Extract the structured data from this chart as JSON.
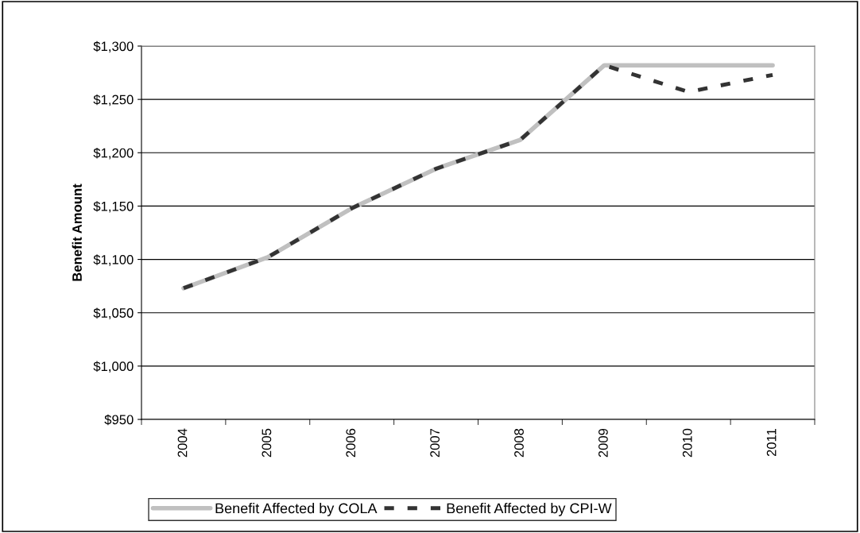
{
  "chart_data": {
    "type": "line",
    "ylabel": "Benefit Amount",
    "categories": [
      "2004",
      "2005",
      "2006",
      "2007",
      "2008",
      "2009",
      "2010",
      "2011"
    ],
    "series": [
      {
        "name": "Benefit Affected by COLA",
        "color": "#c0c0c0",
        "line_style": "solid",
        "values": [
          1073,
          1102,
          1148,
          1185,
          1212,
          1282,
          1282,
          1282
        ]
      },
      {
        "name": "Benefit Affected by CPI-W",
        "color": "#333333",
        "line_style": "dashed",
        "values": [
          1073,
          1102,
          1148,
          1185,
          1212,
          1282,
          1257,
          1273
        ]
      }
    ],
    "ylim": [
      950,
      1300
    ],
    "yticks": [
      {
        "value": 950,
        "label": "$950"
      },
      {
        "value": 1000,
        "label": "$1,000"
      },
      {
        "value": 1050,
        "label": "$1,050"
      },
      {
        "value": 1100,
        "label": "$1,100"
      },
      {
        "value": 1150,
        "label": "$1,150"
      },
      {
        "value": 1200,
        "label": "$1,200"
      },
      {
        "value": 1250,
        "label": "$1,250"
      },
      {
        "value": 1300,
        "label": "$1,300"
      }
    ],
    "grid": "y",
    "legend": "bottom",
    "marker": "none"
  }
}
